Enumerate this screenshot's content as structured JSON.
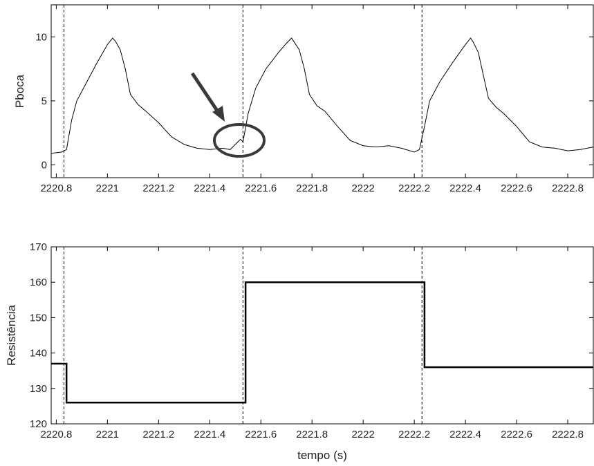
{
  "chart_data": [
    {
      "type": "line",
      "ylabel": "Pboca",
      "xlabel": "",
      "xlim": [
        2220.78,
        2222.9
      ],
      "ylim": [
        -1,
        12.5
      ],
      "xticks": [
        2220.8,
        2221,
        2221.2,
        2221.4,
        2221.6,
        2221.8,
        2222,
        2222.2,
        2222.4,
        2222.6,
        2222.8
      ],
      "xtick_labels": [
        "2220.8",
        "2221",
        "2221.2",
        "2221.4",
        "2221.6",
        "2221.8",
        "2222",
        "2222.2",
        "2222.4",
        "2222.6",
        "2222.8"
      ],
      "yticks": [
        0,
        5,
        10
      ],
      "ytick_labels": [
        "0",
        "5",
        "10"
      ],
      "vlines": [
        2220.83,
        2221.53,
        2222.23
      ],
      "series": [
        {
          "x": [
            2220.78,
            2220.82,
            2220.84,
            2220.86,
            2220.88,
            2220.92,
            2220.96,
            2221.0,
            2221.02,
            2221.03,
            2221.05,
            2221.07,
            2221.09,
            2221.12,
            2221.15,
            2221.2,
            2221.25,
            2221.3,
            2221.35,
            2221.4,
            2221.45,
            2221.48,
            2221.5,
            2221.52,
            2221.53,
            2221.55,
            2221.58,
            2221.62,
            2221.67,
            2221.7,
            2221.72,
            2221.73,
            2221.75,
            2221.77,
            2221.79,
            2221.82,
            2221.85,
            2221.9,
            2221.95,
            2222.0,
            2222.05,
            2222.1,
            2222.15,
            2222.2,
            2222.22,
            2222.24,
            2222.26,
            2222.3,
            2222.35,
            2222.4,
            2222.42,
            2222.43,
            2222.45,
            2222.47,
            2222.49,
            2222.52,
            2222.55,
            2222.6,
            2222.65,
            2222.7,
            2222.75,
            2222.8,
            2222.85,
            2222.9
          ],
          "y": [
            0.9,
            1.0,
            1.2,
            3.5,
            5.0,
            6.5,
            8.0,
            9.4,
            9.9,
            9.7,
            9.0,
            7.5,
            5.5,
            4.7,
            4.2,
            3.3,
            2.2,
            1.6,
            1.3,
            1.2,
            1.3,
            1.2,
            1.6,
            2.0,
            1.8,
            4.0,
            6.0,
            7.5,
            8.8,
            9.5,
            9.9,
            9.6,
            9.0,
            7.5,
            5.5,
            4.6,
            4.2,
            3.0,
            1.9,
            1.5,
            1.4,
            1.5,
            1.3,
            1.0,
            1.2,
            3.0,
            5.0,
            6.5,
            8.0,
            9.4,
            9.9,
            9.6,
            8.8,
            7.0,
            5.2,
            4.5,
            4.0,
            3.0,
            1.8,
            1.4,
            1.3,
            1.1,
            1.2,
            1.4
          ]
        }
      ]
    },
    {
      "type": "line",
      "ylabel": "Resistência",
      "xlabel": "tempo (s)",
      "xlim": [
        2220.78,
        2222.9
      ],
      "ylim": [
        120,
        170
      ],
      "xticks": [
        2220.8,
        2221,
        2221.2,
        2221.4,
        2221.6,
        2221.8,
        2222,
        2222.2,
        2222.4,
        2222.6,
        2222.8
      ],
      "xtick_labels": [
        "2220.8",
        "2221",
        "2221.2",
        "2221.4",
        "2221.6",
        "2221.8",
        "2222",
        "2222.2",
        "2222.4",
        "2222.6",
        "2222.8"
      ],
      "yticks": [
        120,
        130,
        140,
        150,
        160,
        170
      ],
      "ytick_labels": [
        "120",
        "130",
        "140",
        "150",
        "160",
        "170"
      ],
      "vlines": [
        2220.83,
        2221.53,
        2222.23
      ],
      "series": [
        {
          "x": [
            2220.78,
            2220.84,
            2220.84,
            2221.54,
            2221.54,
            2222.24,
            2222.24,
            2222.9
          ],
          "y": [
            137,
            137,
            126,
            126,
            160,
            160,
            136,
            136
          ]
        }
      ]
    }
  ]
}
